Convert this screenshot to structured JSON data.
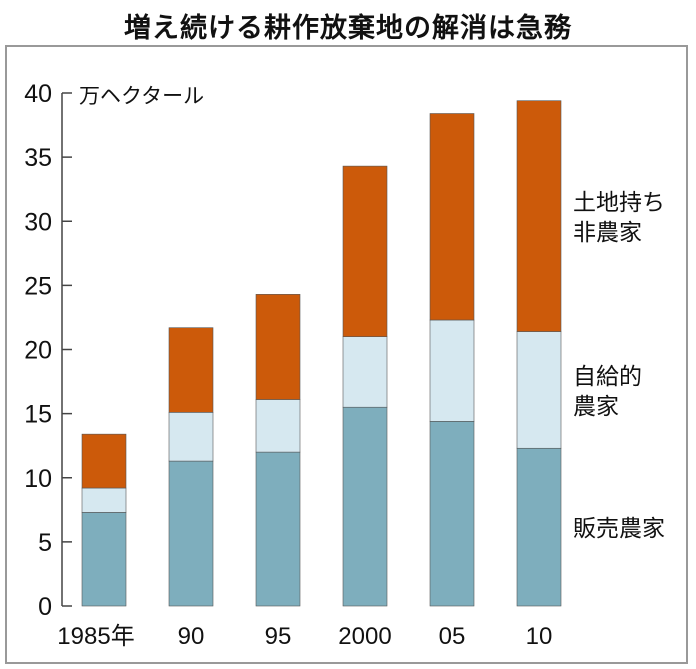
{
  "chart_data": {
    "type": "bar",
    "stacked": true,
    "title": "増え続ける耕作放棄地の解消は急務",
    "ylabel": "万ヘクタール",
    "ylim": [
      0,
      40
    ],
    "yticks": [
      "0",
      "5",
      "10",
      "15",
      "20",
      "25",
      "30",
      "35",
      "40"
    ],
    "categories": [
      "1985年",
      "90",
      "95",
      "2000",
      "05",
      "10"
    ],
    "series": [
      {
        "name": "販売農家",
        "label_lines": [
          "販売農家"
        ],
        "color": "#7eaebd",
        "values": [
          7.3,
          11.3,
          12.0,
          15.5,
          14.4,
          12.3
        ]
      },
      {
        "name": "自給的農家",
        "label_lines": [
          "自給的",
          "農家"
        ],
        "color": "#d6e8f0",
        "values": [
          1.9,
          3.8,
          4.1,
          5.5,
          7.9,
          9.1
        ]
      },
      {
        "name": "土地持ち非農家",
        "label_lines": [
          "土地持ち",
          "非農家"
        ],
        "color": "#cc5a0a",
        "values": [
          4.2,
          6.6,
          8.2,
          13.3,
          16.1,
          18.0
        ]
      }
    ]
  }
}
